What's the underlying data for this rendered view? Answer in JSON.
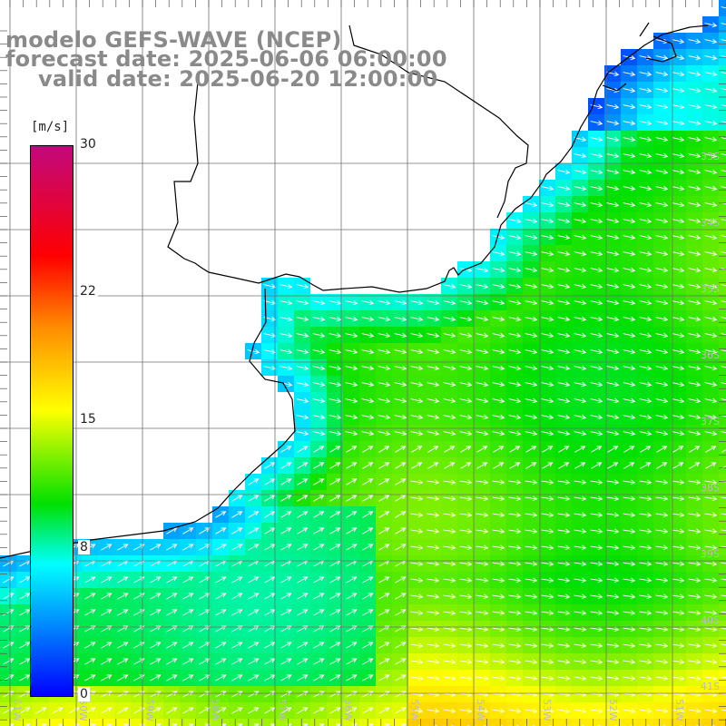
{
  "title": {
    "model": "modelo GEFS-WAVE (NCEP)",
    "forecast": "forecast date: 2025-06-06 06:00:00",
    "valid": "valid date: 2025-06-20 12:00:00"
  },
  "legend": {
    "unit": "[m/s]",
    "ticks": [
      "30",
      "22",
      "15",
      "8",
      "0"
    ],
    "tick_values": [
      30,
      22,
      15,
      8,
      0
    ],
    "range": [
      0,
      30
    ],
    "colors": [
      "#0000ff",
      "#00ffff",
      "#00e000",
      "#ffff00",
      "#ff8c00",
      "#ff0000",
      "#c2087c"
    ]
  },
  "axes": {
    "lon_labels": [
      "61W",
      "60W",
      "59W",
      "58W",
      "57W",
      "56W",
      "55W",
      "54W",
      "53W",
      "52W",
      "51W"
    ],
    "lat_labels": [
      "33S",
      "34S",
      "35S",
      "36S",
      "37S",
      "38S",
      "39S",
      "40S",
      "41S"
    ],
    "lon_range": [
      -61,
      -50
    ],
    "lat_range": [
      -41.3,
      -30.4
    ],
    "grid": true
  },
  "colors": {
    "title_text": "#8a8a8a",
    "coast": "#000000",
    "arrows": "#ffffff",
    "grid": "#707070"
  }
}
